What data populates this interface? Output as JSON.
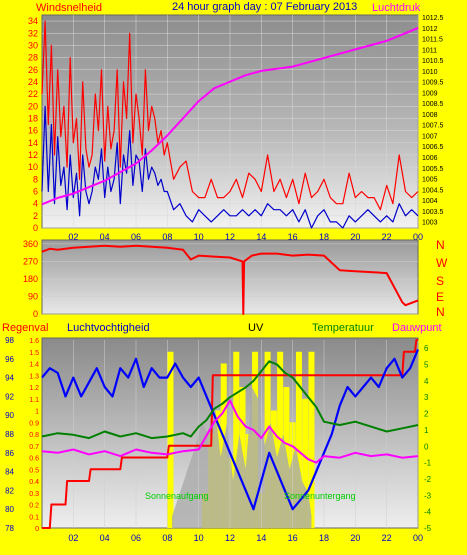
{
  "header": {
    "title": "24 hour graph day : 07 February 2013",
    "left_label": "Windsnelheid",
    "right_label": "Luchtdruk"
  },
  "legend": {
    "rain": "Regenval",
    "humidity": "Luchtvochtigheid",
    "uv": "UV",
    "temperature": "Temperatuur",
    "dewpoint": "Dauwpunt"
  },
  "direction_letters": [
    "N",
    "W",
    "S",
    "E",
    "N"
  ],
  "annotations": {
    "sunrise": "Sonnenaufgang",
    "sunset": "Sonnenuntergang"
  },
  "colors": {
    "background": "#ffff00",
    "wind": "#ff0000",
    "gust_avg": "#0000cc",
    "pressure": "#ff00ff",
    "direction": "#ff0000",
    "humidity": "#0000ff",
    "uv": "#ffff00",
    "solar": "#aaaaaa",
    "temperature": "#008000",
    "dewpoint": "#ff00ff",
    "rain": "#ff0000",
    "annotation": "#00cc00"
  },
  "chart_data": [
    {
      "type": "line",
      "name": "wind_and_pressure",
      "x_ticks": [
        "02",
        "04",
        "06",
        "08",
        "10",
        "12",
        "14",
        "16",
        "18",
        "20",
        "22",
        "00"
      ],
      "xlim": [
        0,
        24
      ],
      "left_ticks": [
        "0",
        "2",
        "4",
        "6",
        "8",
        "10",
        "12",
        "14",
        "16",
        "18",
        "20",
        "22",
        "24",
        "26",
        "28",
        "30",
        "32",
        "34"
      ],
      "ylim_left": [
        0,
        35
      ],
      "right_ticks": [
        "1003",
        "1003.5",
        "1004",
        "1004.5",
        "1005",
        "1005.5",
        "1006",
        "1006.5",
        "1007",
        "1007.5",
        "1008",
        "1008.5",
        "1009",
        "1009.5",
        "1010",
        "1010.5",
        "1011",
        "1011.5",
        "1012",
        "1012.5"
      ],
      "ylim_right": [
        1002.7,
        1012.6
      ],
      "wind_x": [
        0,
        0.2,
        0.4,
        0.6,
        0.8,
        1.0,
        1.2,
        1.4,
        1.6,
        1.8,
        2.0,
        2.2,
        2.4,
        2.6,
        2.8,
        3.0,
        3.2,
        3.4,
        3.6,
        3.8,
        4.0,
        4.2,
        4.4,
        4.6,
        4.8,
        5.0,
        5.2,
        5.4,
        5.6,
        5.8,
        6.0,
        6.2,
        6.4,
        6.6,
        6.8,
        7.0,
        7.2,
        7.4,
        7.6,
        7.8,
        8.0,
        8.4,
        8.8,
        9.2,
        9.6,
        10.0,
        10.4,
        10.8,
        11.2,
        11.6,
        12.0,
        12.4,
        12.8,
        13.2,
        13.6,
        14.0,
        14.4,
        14.8,
        15.2,
        15.6,
        16.0,
        16.4,
        16.8,
        17.2,
        17.6,
        18.0,
        18.4,
        18.8,
        19.2,
        19.6,
        20.0,
        20.4,
        20.8,
        21.2,
        21.6,
        22.0,
        22.4,
        22.8,
        23.2,
        23.6,
        24.0
      ],
      "series": [
        {
          "name": "wind",
          "values": [
            22,
            34,
            17,
            30,
            12,
            26,
            15,
            20,
            10,
            28,
            14,
            18,
            8,
            24,
            13,
            10,
            12,
            22,
            16,
            26,
            11,
            20,
            13,
            16,
            26,
            10,
            24,
            18,
            32,
            14,
            22,
            18,
            12,
            26,
            16,
            20,
            18,
            14,
            16,
            12,
            14,
            8,
            10,
            11,
            6,
            5,
            5,
            8,
            5,
            5,
            6,
            8,
            5,
            9,
            8,
            6,
            12,
            6,
            8,
            5,
            8,
            4,
            9,
            5,
            6,
            8,
            5,
            4,
            4,
            9,
            5,
            6,
            5,
            5,
            3,
            7,
            4,
            12,
            6,
            5,
            6
          ]
        },
        {
          "name": "gust_avg",
          "values": [
            6,
            20,
            6,
            17,
            4,
            15,
            7,
            10,
            3,
            12,
            5,
            9,
            2,
            12,
            6,
            4,
            6,
            10,
            8,
            13,
            5,
            10,
            6,
            8,
            14,
            4,
            12,
            9,
            16,
            7,
            12,
            11,
            6,
            13,
            8,
            10,
            9,
            7,
            8,
            6,
            6,
            3,
            4,
            2,
            1,
            3,
            2,
            1,
            2,
            3,
            2,
            2,
            3,
            2,
            3,
            2,
            4,
            3,
            3,
            2,
            3,
            1,
            3,
            0,
            2,
            3,
            1,
            1,
            0,
            2,
            1,
            2,
            3,
            2,
            1,
            2,
            1,
            4,
            2,
            3,
            2
          ]
        }
      ],
      "pressure_x": [
        0,
        1,
        2,
        3,
        4,
        5,
        6,
        7,
        8,
        9,
        10,
        11,
        12,
        13,
        14,
        15,
        16,
        17,
        18,
        19,
        20,
        21,
        22,
        23,
        24
      ],
      "pressure_values": [
        1003.8,
        1004.1,
        1004.3,
        1004.6,
        1004.9,
        1005.3,
        1005.7,
        1006.3,
        1007.0,
        1007.8,
        1008.6,
        1009.2,
        1009.5,
        1009.8,
        1010.0,
        1010.1,
        1010.2,
        1010.4,
        1010.6,
        1010.8,
        1011.0,
        1011.2,
        1011.4,
        1011.7,
        1012.0
      ]
    },
    {
      "type": "line",
      "name": "wind_direction",
      "left_ticks": [
        "0",
        "90",
        "180",
        "270",
        "360"
      ],
      "ylim": [
        0,
        380
      ],
      "x": [
        0,
        0.5,
        1,
        2,
        3,
        4,
        5,
        6,
        7,
        8,
        9,
        9.5,
        10,
        11,
        12,
        12.8,
        12.85,
        12.9,
        13.4,
        14,
        15,
        16,
        17,
        18,
        19,
        20,
        21,
        22,
        23,
        23.2,
        24
      ],
      "values": [
        320,
        335,
        330,
        340,
        345,
        350,
        345,
        350,
        345,
        340,
        330,
        280,
        300,
        295,
        290,
        270,
        0,
        270,
        300,
        310,
        310,
        300,
        305,
        300,
        225,
        220,
        215,
        210,
        60,
        45,
        70
      ]
    },
    {
      "type": "line",
      "name": "bottom_multi",
      "x_ticks": [
        "02",
        "04",
        "06",
        "08",
        "10",
        "12",
        "14",
        "16",
        "18",
        "20",
        "22",
        "00"
      ],
      "rain_ticks": [
        "0",
        "0.1",
        "0.2",
        "0.3",
        "0.4",
        "0.5",
        "0.6",
        "0.7",
        "0.8",
        "0.9",
        "1",
        "1.1",
        "1.2",
        "1.3",
        "1.4",
        "1.5",
        "1.6"
      ],
      "rain_ylim": [
        0,
        1.6
      ],
      "humidity_ticks": [
        "78",
        "80",
        "82",
        "84",
        "86",
        "88",
        "90",
        "92",
        "94",
        "96",
        "98"
      ],
      "humidity_ylim": [
        78,
        98
      ],
      "temp_ticks": [
        "-5",
        "-4",
        "-3",
        "-2",
        "-1",
        "0",
        "1",
        "2",
        "3",
        "4",
        "5",
        "6"
      ],
      "temp_ylim": [
        -5,
        6.5
      ],
      "rain_x": [
        0,
        0.5,
        0.6,
        1.5,
        1.6,
        3.0,
        3.1,
        5.0,
        5.1,
        8.0,
        8.1,
        10.8,
        10.9,
        23.0,
        23.1,
        23.8,
        23.9,
        24
      ],
      "rain": [
        0,
        0,
        0.2,
        0.2,
        0.4,
        0.4,
        0.5,
        0.5,
        0.6,
        0.6,
        0.7,
        0.7,
        1.3,
        1.3,
        1.5,
        1.5,
        1.6,
        1.6
      ],
      "humidity_x": [
        0,
        0.5,
        1,
        1.5,
        2,
        2.5,
        3,
        3.5,
        4,
        4.5,
        5,
        5.5,
        6,
        6.5,
        7,
        7.5,
        8,
        8.5,
        9,
        9.5,
        10,
        10.5,
        11,
        11.5,
        12,
        12.5,
        13,
        13.5,
        14,
        14.5,
        15,
        15.5,
        16,
        16.5,
        17,
        17.5,
        18,
        18.5,
        19,
        19.5,
        20,
        20.5,
        21,
        21.5,
        22,
        22.5,
        23,
        23.5,
        24
      ],
      "humidity": [
        94,
        95,
        94.5,
        92,
        94,
        92,
        93.5,
        95,
        93,
        92,
        95,
        94,
        96,
        93,
        95,
        94,
        94,
        95.5,
        94,
        93,
        94,
        92,
        90,
        88,
        86,
        84,
        82,
        80,
        83,
        86,
        84,
        82,
        80,
        81,
        82,
        84,
        86,
        88,
        91,
        93,
        92,
        93,
        94,
        93,
        95,
        96,
        94,
        95,
        97
      ],
      "temperature_x": [
        0,
        1,
        2,
        3,
        4,
        5,
        6,
        7,
        8,
        9,
        9.5,
        10,
        10.5,
        11,
        11.5,
        12,
        12.5,
        13,
        13.5,
        14,
        14.5,
        15,
        15.5,
        16,
        16.5,
        17,
        17.5,
        18,
        19,
        20,
        21,
        22,
        23,
        24
      ],
      "temperature": [
        0.6,
        0.8,
        0.7,
        0.5,
        0.9,
        0.6,
        0.8,
        0.5,
        0.6,
        0.8,
        0.6,
        1.2,
        1.6,
        2.3,
        2.6,
        3.0,
        3.3,
        3.6,
        4.0,
        4.6,
        5.2,
        5.0,
        4.5,
        4.2,
        3.6,
        3.0,
        2.4,
        1.5,
        1.3,
        1.5,
        1.2,
        0.9,
        1.1,
        1.3
      ],
      "dewpoint_x": [
        0,
        1,
        2,
        3,
        4,
        5,
        6,
        7,
        8,
        9,
        10,
        11,
        11.5,
        12,
        12.5,
        13,
        13.5,
        14,
        14.5,
        15,
        15.5,
        16,
        16.5,
        17,
        17.5,
        18,
        19,
        20,
        21,
        22,
        23,
        24
      ],
      "dewpoint": [
        -0.3,
        -0.4,
        -0.2,
        -0.5,
        -0.3,
        -0.6,
        -0.2,
        -0.4,
        -0.5,
        -0.3,
        -0.2,
        1.5,
        2.0,
        2.8,
        1.8,
        1.2,
        1.0,
        0.5,
        1.2,
        0.6,
        0.2,
        0.0,
        -0.4,
        -0.8,
        -1.0,
        -0.6,
        -0.7,
        -0.4,
        -0.6,
        -0.5,
        -0.7,
        -0.6
      ],
      "uv_x": [
        8.2,
        10.4,
        10.8,
        11.2,
        11.6,
        12.0,
        12.4,
        12.8,
        13.2,
        13.6,
        14.0,
        14.4,
        14.8,
        15.2,
        15.6,
        16.0,
        16.4,
        16.8,
        17.2
      ],
      "uv": [
        1.5,
        0.3,
        0.8,
        1.0,
        1.4,
        0.6,
        1.5,
        1.2,
        0.8,
        1.5,
        0.3,
        1.5,
        1.0,
        1.5,
        1.2,
        0.9,
        1.5,
        1.1,
        1.5
      ],
      "solar_x": [
        8.3,
        8.8,
        9.3,
        9.8,
        10.2,
        10.6,
        11.0,
        11.4,
        11.8,
        12.2,
        12.6,
        13.0,
        13.4,
        13.8,
        14.2,
        14.6,
        15.0,
        15.4,
        15.8,
        16.2,
        16.6,
        17.0,
        17.2
      ],
      "solar": [
        0.1,
        0.3,
        0.5,
        0.7,
        0.9,
        0.8,
        1.1,
        0.6,
        0.9,
        0.4,
        0.8,
        0.5,
        1.2,
        1.1,
        0.7,
        0.9,
        0.6,
        0.8,
        0.5,
        0.7,
        0.4,
        0.3,
        0.1
      ]
    }
  ]
}
